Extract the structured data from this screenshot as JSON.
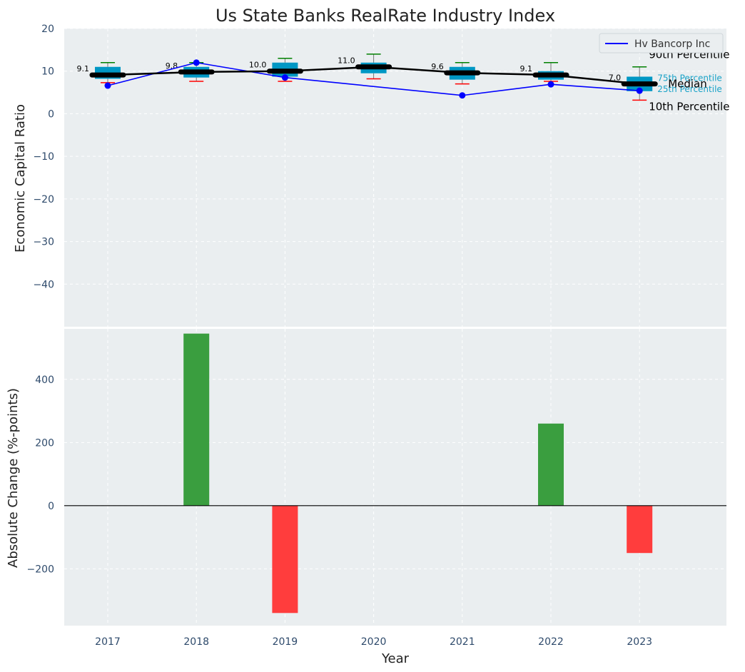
{
  "chart_data": [
    {
      "type": "box",
      "title": "Us State Banks RealRate Industry Index",
      "xlabel": "",
      "ylabel": "Economic Capital Ratio",
      "ylim": [
        -50,
        20
      ],
      "yticks": [
        -40,
        -30,
        -20,
        -10,
        0,
        10,
        20
      ],
      "grid": true,
      "legend": {
        "position": "top-right",
        "entries": [
          "Hv Bancorp Inc"
        ]
      },
      "categories": [
        "2017",
        "2018",
        "2019",
        "2020",
        "2021",
        "2022",
        "2023"
      ],
      "percentiles": {
        "p10": [
          7.3,
          7.6,
          7.6,
          8.2,
          7.0,
          7.6,
          3.2
        ],
        "p25": [
          8.2,
          8.5,
          8.7,
          9.5,
          8.0,
          8.0,
          5.3
        ],
        "median": [
          9.1,
          9.8,
          10.0,
          11.0,
          9.6,
          9.1,
          7.0
        ],
        "p75": [
          11.0,
          11.0,
          12.0,
          12.0,
          11.0,
          10.0,
          8.7
        ],
        "p90": [
          12.0,
          12.0,
          13.0,
          14.0,
          12.0,
          12.0,
          11.0
        ]
      },
      "median_labels": [
        "9.1",
        "9.8",
        "10.0",
        "11.0",
        "9.6",
        "9.1",
        "7.0"
      ],
      "series": [
        {
          "name": "Hv Bancorp Inc",
          "values": [
            6.6,
            12.0,
            8.5,
            null,
            4.3,
            6.9,
            5.4
          ],
          "color": "#0000ff"
        }
      ],
      "annotations": {
        "p90": "90th Percentile",
        "p75": "75th Percentile",
        "median": "Median",
        "p25": "25th Percentile",
        "p10": "10th Percentile"
      }
    },
    {
      "type": "bar",
      "xlabel": "Year",
      "ylabel": "Absolute Change (%-points)",
      "ylim": [
        -380,
        560
      ],
      "yticks": [
        -200,
        0,
        200,
        400
      ],
      "grid": true,
      "categories": [
        "2017",
        "2018",
        "2019",
        "2020",
        "2021",
        "2022",
        "2023"
      ],
      "values": [
        null,
        545,
        -340,
        null,
        null,
        260,
        -150
      ]
    }
  ],
  "colors": {
    "panel": "#eaeef0",
    "grid": "#ffffff",
    "box": "#0097c4",
    "whisker_top": "#008000",
    "whisker_bottom": "#ff0000",
    "median": "#000000",
    "series": "#0000ff",
    "positive": "#3a9e3f",
    "negative": "#ff3d3d",
    "tick_text": "#2e4a6b",
    "annotation_small": "#1aa3c8"
  }
}
